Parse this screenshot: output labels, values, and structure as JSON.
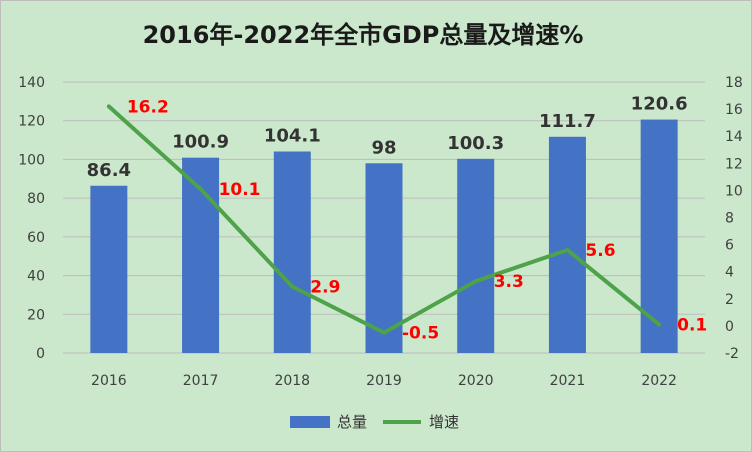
{
  "chart_data": {
    "type": "bar",
    "title": "2016年-2022年全市GDP总量及增速%",
    "categories": [
      "2016",
      "2017",
      "2018",
      "2019",
      "2020",
      "2021",
      "2022"
    ],
    "series": [
      {
        "name": "总量",
        "type": "bar",
        "axis": "left",
        "color": "#4472c4",
        "values": [
          86.4,
          100.9,
          104.1,
          98,
          100.3,
          111.7,
          120.6
        ]
      },
      {
        "name": "增速",
        "type": "line",
        "axis": "right",
        "color": "#4ea24a",
        "label_color": "#ff0000",
        "values": [
          16.2,
          10.1,
          2.9,
          -0.5,
          3.3,
          5.6,
          0.1
        ]
      }
    ],
    "y_left": {
      "min": 0,
      "max": 140,
      "step": 20
    },
    "y_right": {
      "min": -2,
      "max": 18,
      "step": 2
    },
    "grid": true,
    "legend_position": "bottom"
  }
}
